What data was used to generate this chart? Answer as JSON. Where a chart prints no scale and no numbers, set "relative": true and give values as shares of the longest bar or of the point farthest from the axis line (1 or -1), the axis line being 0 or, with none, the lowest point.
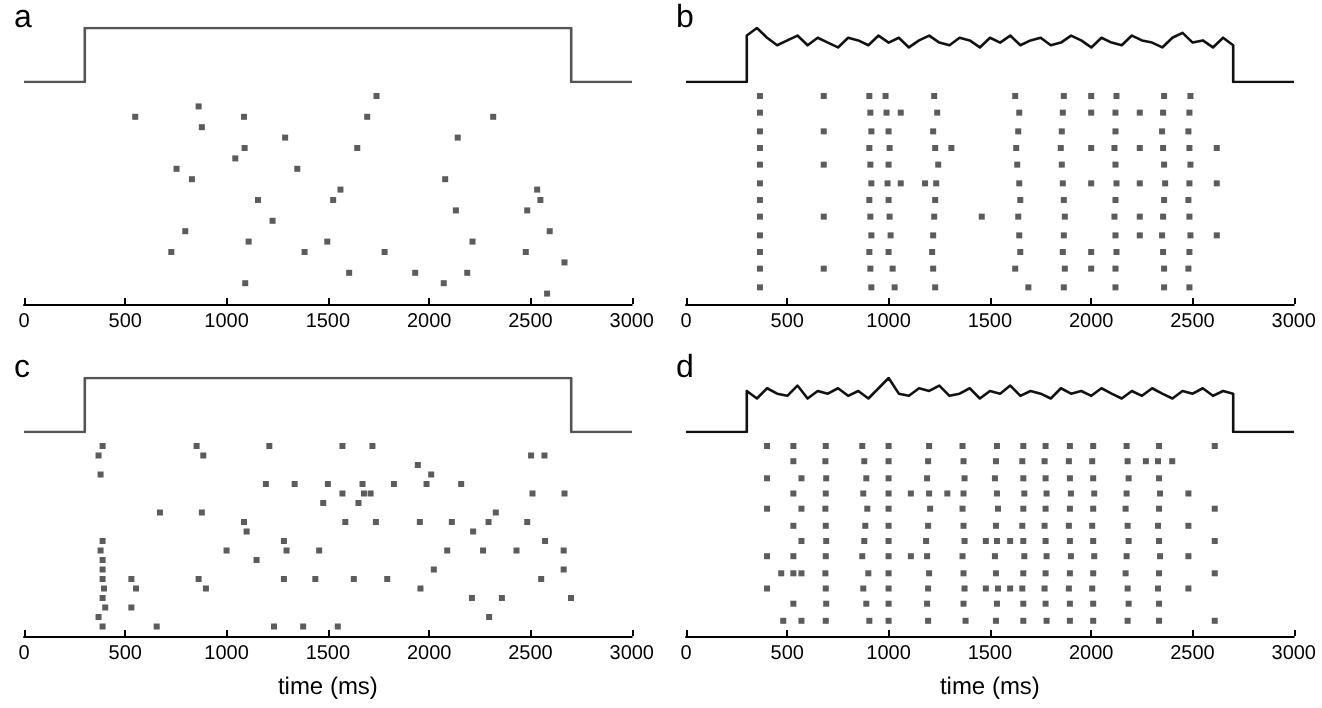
{
  "chart_data": [
    {
      "type": "line",
      "title": "a",
      "relative": true,
      "xlim": [
        0,
        3000
      ],
      "grid": false,
      "series": [
        {
          "color": "#555555",
          "x": [
            0,
            300,
            300,
            2700,
            2700,
            3000
          ],
          "values": [
            0,
            0,
            1,
            1,
            0,
            0
          ]
        }
      ]
    },
    {
      "type": "scatter",
      "relative": true,
      "marker": "square",
      "xlim": [
        0,
        3000
      ],
      "xticks": [
        0,
        500,
        1000,
        1500,
        2000,
        2500,
        3000
      ],
      "grid": false,
      "series": [
        {
          "color": "#333333",
          "x": [
            1740,
            862,
            549,
            1086,
            1694,
            2316,
            878,
            1289,
            2141,
            1089,
            1645,
            1043,
            753,
            1349,
            829,
            2079,
            1562,
            2533,
            1155,
            1526,
            2549,
            2132,
            2484,
            1227,
            796,
            2595,
            1109,
            1497,
            2214,
            727,
            1385,
            1780,
            2477,
            2668,
            1605,
            1931,
            2188,
            1092,
            2072,
            2582
          ],
          "values": [
            1,
            0.95,
            0.9,
            0.9,
            0.9,
            0.9,
            0.85,
            0.8,
            0.8,
            0.75,
            0.75,
            0.7,
            0.65,
            0.65,
            0.6,
            0.6,
            0.55,
            0.55,
            0.5,
            0.5,
            0.5,
            0.45,
            0.45,
            0.4,
            0.35,
            0.35,
            0.3,
            0.3,
            0.3,
            0.25,
            0.25,
            0.25,
            0.25,
            0.2,
            0.15,
            0.15,
            0.15,
            0.1,
            0.1,
            0.05
          ]
        }
      ]
    },
    {
      "type": "line",
      "title": "b",
      "relative": true,
      "xlim": [
        0,
        3000
      ],
      "grid": false,
      "series": [
        {
          "color": "#111111",
          "x": [
            0,
            300,
            300,
            350,
            400,
            450,
            500,
            550,
            600,
            650,
            700,
            750,
            800,
            850,
            900,
            950,
            1000,
            1050,
            1100,
            1150,
            1200,
            1250,
            1300,
            1350,
            1400,
            1450,
            1500,
            1550,
            1600,
            1650,
            1700,
            1750,
            1800,
            1850,
            1900,
            1950,
            2000,
            2050,
            2100,
            2150,
            2200,
            2250,
            2300,
            2350,
            2400,
            2450,
            2500,
            2550,
            2600,
            2650,
            2700,
            2700,
            3000
          ],
          "values": [
            0,
            0,
            0.86,
            1,
            0.82,
            0.68,
            0.77,
            0.86,
            0.68,
            0.82,
            0.73,
            0.64,
            0.82,
            0.77,
            0.68,
            0.86,
            0.73,
            0.82,
            0.64,
            0.77,
            0.86,
            0.73,
            0.68,
            0.82,
            0.77,
            0.64,
            0.82,
            0.73,
            0.86,
            0.68,
            0.77,
            0.82,
            0.68,
            0.73,
            0.86,
            0.77,
            0.64,
            0.82,
            0.73,
            0.68,
            0.86,
            0.77,
            0.73,
            0.64,
            0.82,
            0.91,
            0.73,
            0.77,
            0.64,
            0.82,
            0.68,
            0,
            0
          ]
        }
      ]
    },
    {
      "type": "scatter",
      "relative": true,
      "marker": "square",
      "xlim": [
        0,
        3000
      ],
      "xticks": [
        0,
        500,
        1000,
        1500,
        2000,
        2500,
        3000
      ],
      "grid": false,
      "series": [
        {
          "color": "#333333",
          "x": [
            365,
            365,
            365,
            365,
            365,
            365,
            365,
            365,
            365,
            365,
            365,
            365,
            905,
            910,
            915,
            905,
            910,
            915,
            905,
            910,
            915,
            905,
            910,
            915,
            985,
            990,
            1000,
            1005,
            1000,
            995,
            1000,
            1005,
            1010,
            1000,
            1020,
            1030,
            1225,
            1240,
            1220,
            1230,
            1245,
            1235,
            1230,
            1225,
            1220,
            1215,
            1220,
            1230,
            1625,
            1645,
            1640,
            1630,
            1635,
            1645,
            1650,
            1640,
            1645,
            1650,
            1625,
            1690,
            1865,
            1860,
            1855,
            1850,
            1855,
            1860,
            1865,
            1870,
            1865,
            1860,
            1870,
            1865,
            2125,
            2120,
            2120,
            2115,
            2120,
            2125,
            2120,
            2115,
            2120,
            2125,
            2120,
            2120,
            2360,
            2355,
            2350,
            2355,
            2360,
            2365,
            2360,
            2355,
            2350,
            2355,
            2360,
            2360,
            2490,
            2485,
            2480,
            2485,
            2490,
            2485,
            2480,
            2485,
            2490,
            2485,
            2480,
            2485,
            680,
            680,
            680,
            680,
            680,
            2000,
            2000,
            2000,
            2000,
            2000,
            2000,
            2240,
            2240,
            2240,
            2240,
            2240,
            2620,
            2620,
            2620,
            1310,
            1460,
            1060,
            1060,
            1180
          ],
          "values": [
            1,
            0.92,
            0.83,
            0.75,
            0.67,
            0.58,
            0.5,
            0.42,
            0.33,
            0.25,
            0.17,
            0.08,
            1,
            0.92,
            0.83,
            0.75,
            0.67,
            0.58,
            0.5,
            0.42,
            0.33,
            0.25,
            0.17,
            0.08,
            1,
            0.92,
            0.83,
            0.75,
            0.67,
            0.58,
            0.5,
            0.42,
            0.33,
            0.25,
            0.17,
            0.08,
            1,
            0.92,
            0.83,
            0.75,
            0.67,
            0.58,
            0.5,
            0.42,
            0.33,
            0.25,
            0.17,
            0.08,
            1,
            0.92,
            0.83,
            0.75,
            0.67,
            0.58,
            0.5,
            0.42,
            0.33,
            0.25,
            0.17,
            0.08,
            1,
            0.92,
            0.83,
            0.75,
            0.67,
            0.58,
            0.5,
            0.42,
            0.33,
            0.25,
            0.17,
            0.08,
            1,
            0.92,
            0.83,
            0.75,
            0.67,
            0.58,
            0.5,
            0.42,
            0.33,
            0.25,
            0.17,
            0.08,
            1,
            0.92,
            0.83,
            0.75,
            0.67,
            0.58,
            0.5,
            0.42,
            0.33,
            0.25,
            0.17,
            0.08,
            1,
            0.92,
            0.83,
            0.75,
            0.67,
            0.58,
            0.5,
            0.42,
            0.33,
            0.25,
            0.17,
            0.08,
            1,
            0.83,
            0.67,
            0.42,
            0.17,
            1,
            0.92,
            0.75,
            0.58,
            0.25,
            0.17,
            0.92,
            0.75,
            0.58,
            0.42,
            0.33,
            0.75,
            0.58,
            0.33,
            0.75,
            0.42,
            0.92,
            0.58,
            0.58
          ]
        }
      ]
    },
    {
      "type": "line",
      "title": "c",
      "relative": true,
      "xlim": [
        0,
        3000
      ],
      "grid": false,
      "series": [
        {
          "color": "#555555",
          "x": [
            0,
            300,
            300,
            2700,
            2700,
            3000
          ],
          "values": [
            0,
            0,
            1,
            1,
            0,
            0
          ]
        }
      ]
    },
    {
      "type": "scatter",
      "xlabel": "time (ms)",
      "relative": true,
      "marker": "square",
      "xlim": [
        0,
        3000
      ],
      "xticks": [
        0,
        500,
        1000,
        1500,
        2000,
        2500,
        3000
      ],
      "grid": false,
      "series": [
        {
          "color": "#333333",
          "x": [
            388,
            852,
            1211,
            1572,
            1720,
            368,
            885,
            2503,
            2569,
            1944,
            378,
            2010,
            1194,
            1336,
            1500,
            1671,
            1826,
            1987,
            2158,
            1572,
            1711,
            2510,
            2668,
            1678,
            1477,
            1651,
            671,
            878,
            2329,
            1086,
            1586,
            1737,
            1954,
            2112,
            2293,
            2484,
            1099,
            2217,
            388,
            1283,
            2572,
            378,
            1000,
            1296,
            1457,
            2089,
            2266,
            2431,
            2664,
            1148,
            388,
            2023,
            2664,
            388,
            388,
            530,
            862,
            1283,
            1438,
            1628,
            1793,
            2553,
            395,
            553,
            898,
            1957,
            2211,
            2359,
            2700,
            388,
            401,
            530,
            368,
            2296,
            388,
            655,
            1234,
            1378,
            1549
          ],
          "values": [
            1,
            1,
            1,
            1,
            1,
            0.95,
            0.95,
            0.95,
            0.95,
            0.9,
            0.85,
            0.85,
            0.8,
            0.8,
            0.8,
            0.8,
            0.8,
            0.8,
            0.8,
            0.75,
            0.75,
            0.75,
            0.75,
            0.75,
            0.7,
            0.7,
            0.65,
            0.65,
            0.65,
            0.6,
            0.6,
            0.6,
            0.6,
            0.6,
            0.6,
            0.6,
            0.55,
            0.55,
            0.5,
            0.5,
            0.5,
            0.45,
            0.45,
            0.45,
            0.45,
            0.45,
            0.45,
            0.45,
            0.45,
            0.4,
            0.4,
            0.35,
            0.35,
            0.35,
            0.3,
            0.3,
            0.3,
            0.3,
            0.3,
            0.3,
            0.3,
            0.3,
            0.25,
            0.25,
            0.25,
            0.25,
            0.2,
            0.2,
            0.2,
            0.2,
            0.15,
            0.15,
            0.1,
            0.1,
            0.05,
            0.05,
            0.05,
            0.05,
            0.05
          ]
        }
      ]
    },
    {
      "type": "line",
      "title": "d",
      "relative": true,
      "xlim": [
        0,
        3000
      ],
      "grid": false,
      "series": [
        {
          "color": "#111111",
          "x": [
            0,
            300,
            300,
            350,
            400,
            450,
            500,
            550,
            600,
            650,
            700,
            750,
            800,
            850,
            900,
            950,
            1000,
            1050,
            1100,
            1150,
            1200,
            1250,
            1300,
            1350,
            1400,
            1450,
            1500,
            1550,
            1600,
            1650,
            1700,
            1750,
            1800,
            1850,
            1900,
            1950,
            2000,
            2050,
            2100,
            2150,
            2200,
            2250,
            2300,
            2350,
            2400,
            2450,
            2500,
            2550,
            2600,
            2650,
            2700,
            2700,
            3000
          ],
          "values": [
            0,
            0,
            0.76,
            0.62,
            0.81,
            0.71,
            0.67,
            0.86,
            0.62,
            0.76,
            0.71,
            0.81,
            0.67,
            0.76,
            0.62,
            0.81,
            1,
            0.71,
            0.67,
            0.81,
            0.76,
            0.86,
            0.67,
            0.71,
            0.81,
            0.62,
            0.76,
            0.71,
            0.86,
            0.67,
            0.76,
            0.71,
            0.62,
            0.81,
            0.71,
            0.76,
            0.67,
            0.81,
            0.71,
            0.62,
            0.76,
            0.67,
            0.81,
            0.71,
            0.62,
            0.76,
            0.71,
            0.81,
            0.67,
            0.76,
            0.71,
            0,
            0
          ]
        }
      ]
    },
    {
      "type": "scatter",
      "xlabel": "time (ms)",
      "relative": true,
      "marker": "square",
      "xlim": [
        0,
        3000
      ],
      "xticks": [
        0,
        500,
        1000,
        1500,
        2000,
        2500,
        3000
      ],
      "grid": false,
      "series": [
        {
          "color": "#333333",
          "x": [
            690,
            688,
            692,
            690,
            688,
            690,
            692,
            690,
            688,
            690,
            692,
            690,
            870,
            880,
            890,
            875,
            895,
            885,
            880,
            870,
            900,
            875,
            890,
            905,
            1000,
            1000,
            1000,
            1000,
            1000,
            1000,
            1000,
            1000,
            1000,
            1000,
            1000,
            1000,
            1200,
            1195,
            1190,
            1200,
            1205,
            1195,
            1185,
            1190,
            1200,
            1195,
            1190,
            1195,
            1365,
            1370,
            1375,
            1370,
            1365,
            1370,
            1375,
            1365,
            1370,
            1375,
            1370,
            1380,
            1535,
            1530,
            1525,
            1535,
            1540,
            1530,
            1535,
            1525,
            1530,
            1540,
            1535,
            1530,
            1665,
            1660,
            1665,
            1670,
            1665,
            1660,
            1665,
            1670,
            1665,
            1660,
            1665,
            1665,
            1775,
            1770,
            1775,
            1780,
            1775,
            1770,
            1775,
            1780,
            1775,
            1770,
            1775,
            1780,
            1895,
            1890,
            1895,
            1900,
            1895,
            1890,
            1895,
            1900,
            1895,
            1890,
            1895,
            1895,
            2010,
            2005,
            2010,
            2015,
            2010,
            2005,
            2010,
            2015,
            2010,
            2005,
            2010,
            2010,
            2175,
            2180,
            2185,
            2175,
            2170,
            2180,
            2185,
            2175,
            2170,
            2180,
            2185,
            2180,
            2335,
            2330,
            2335,
            2340,
            2335,
            2330,
            2335,
            2340,
            2335,
            2330,
            2335,
            2335,
            400,
            400,
            400,
            400,
            400,
            530,
            530,
            530,
            530,
            530,
            530,
            530,
            570,
            570,
            570,
            570,
            570,
            2480,
            2480,
            2480,
            2480,
            2610,
            2610,
            2610,
            2610,
            2610,
            1110,
            1110,
            1290,
            1480,
            1480,
            1600,
            1600,
            2270,
            2400,
            480,
            470
          ],
          "values": [
            1,
            0.92,
            0.83,
            0.75,
            0.67,
            0.58,
            0.5,
            0.42,
            0.33,
            0.25,
            0.17,
            0.08,
            1,
            0.92,
            0.83,
            0.75,
            0.67,
            0.58,
            0.5,
            0.42,
            0.33,
            0.25,
            0.17,
            0.08,
            1,
            0.92,
            0.83,
            0.75,
            0.67,
            0.58,
            0.5,
            0.42,
            0.33,
            0.25,
            0.17,
            0.08,
            1,
            0.92,
            0.83,
            0.75,
            0.67,
            0.58,
            0.5,
            0.42,
            0.33,
            0.25,
            0.17,
            0.08,
            1,
            0.92,
            0.83,
            0.75,
            0.67,
            0.58,
            0.5,
            0.42,
            0.33,
            0.25,
            0.17,
            0.08,
            1,
            0.92,
            0.83,
            0.75,
            0.67,
            0.58,
            0.5,
            0.42,
            0.33,
            0.25,
            0.17,
            0.08,
            1,
            0.92,
            0.83,
            0.75,
            0.67,
            0.58,
            0.5,
            0.42,
            0.33,
            0.25,
            0.17,
            0.08,
            1,
            0.92,
            0.83,
            0.75,
            0.67,
            0.58,
            0.5,
            0.42,
            0.33,
            0.25,
            0.17,
            0.08,
            1,
            0.92,
            0.83,
            0.75,
            0.67,
            0.58,
            0.5,
            0.42,
            0.33,
            0.25,
            0.17,
            0.08,
            1,
            0.92,
            0.83,
            0.75,
            0.67,
            0.58,
            0.5,
            0.42,
            0.33,
            0.25,
            0.17,
            0.08,
            1,
            0.92,
            0.83,
            0.75,
            0.67,
            0.58,
            0.5,
            0.42,
            0.33,
            0.25,
            0.17,
            0.08,
            1,
            0.92,
            0.83,
            0.75,
            0.67,
            0.58,
            0.5,
            0.42,
            0.33,
            0.25,
            0.17,
            0.08,
            1,
            0.83,
            0.67,
            0.42,
            0.25,
            1,
            0.92,
            0.75,
            0.58,
            0.42,
            0.33,
            0.17,
            0.83,
            0.67,
            0.5,
            0.33,
            0.08,
            0.75,
            0.58,
            0.42,
            0.25,
            1,
            0.67,
            0.5,
            0.33,
            0.08,
            0.75,
            0.42,
            0.75,
            0.5,
            0.25,
            0.5,
            0.25,
            0.92,
            0.92,
            0.08,
            0.33
          ]
        }
      ]
    }
  ]
}
